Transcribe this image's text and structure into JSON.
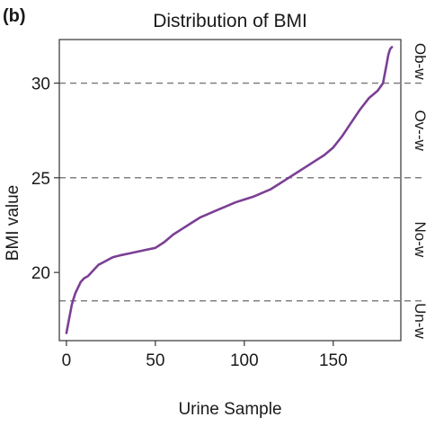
{
  "panel_label": "(b)",
  "chart_data": {
    "type": "line",
    "title": "Distribution of BMI",
    "xlabel": "Urine Sample",
    "ylabel": "BMI value",
    "xlim": [
      -4,
      188
    ],
    "ylim": [
      16.4,
      32.3
    ],
    "xticks": [
      0,
      50,
      100,
      150
    ],
    "yticks": [
      20,
      25,
      30
    ],
    "grid": false,
    "line_color": "#7b3f94",
    "reference_line_color": "#808080",
    "reference_lines": [
      {
        "y": 18.5,
        "label": "Un-w"
      },
      {
        "y": 25,
        "label": ""
      },
      {
        "y": 30,
        "label": ""
      }
    ],
    "region_labels": [
      {
        "label": "Ob-w",
        "y_from": 30,
        "y_to": 32.3
      },
      {
        "label": "Ov--w",
        "y_from": 25,
        "y_to": 30
      },
      {
        "label": "No-w",
        "y_from": 18.5,
        "y_to": 25
      },
      {
        "label": "Un-w",
        "y_from": 16.4,
        "y_to": 18.5
      }
    ],
    "series": [
      {
        "x": [
          0,
          1,
          2,
          3,
          4,
          5,
          6,
          7,
          8,
          10,
          12,
          14,
          16,
          18,
          20,
          22,
          24,
          26,
          28,
          30,
          35,
          40,
          45,
          50,
          55,
          60,
          65,
          70,
          75,
          80,
          85,
          90,
          95,
          100,
          105,
          110,
          115,
          120,
          125,
          130,
          135,
          140,
          145,
          150,
          155,
          160,
          165,
          170,
          175,
          178,
          179,
          180,
          181,
          182,
          183
        ],
        "y": [
          16.8,
          17.3,
          17.8,
          18.3,
          18.6,
          18.9,
          19.1,
          19.3,
          19.5,
          19.7,
          19.8,
          20.0,
          20.2,
          20.4,
          20.5,
          20.6,
          20.7,
          20.8,
          20.85,
          20.9,
          21.0,
          21.1,
          21.2,
          21.3,
          21.6,
          22.0,
          22.3,
          22.6,
          22.9,
          23.1,
          23.3,
          23.5,
          23.7,
          23.85,
          24.0,
          24.2,
          24.4,
          24.7,
          25.0,
          25.3,
          25.6,
          25.9,
          26.2,
          26.6,
          27.2,
          27.9,
          28.6,
          29.2,
          29.6,
          30.0,
          30.5,
          31.0,
          31.5,
          31.8,
          31.9
        ]
      }
    ]
  }
}
